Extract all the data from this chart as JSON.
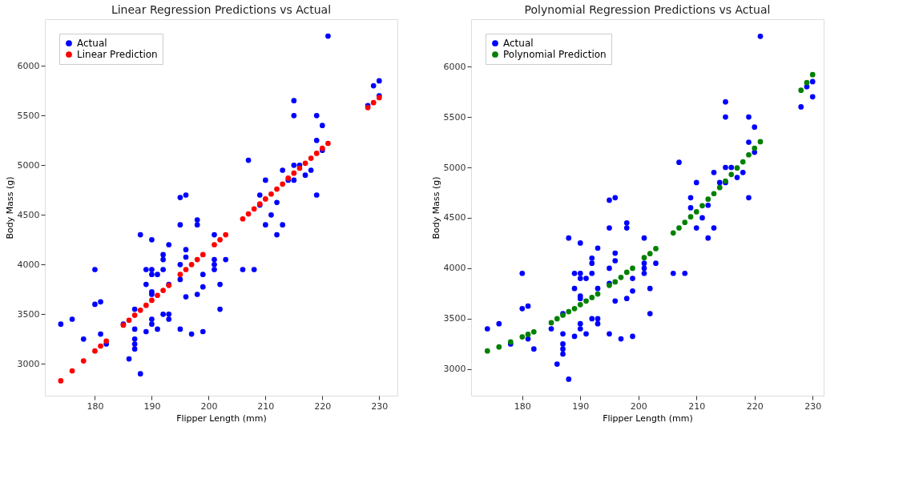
{
  "chart_data": [
    {
      "type": "scatter",
      "title": "Linear Regression Predictions vs Actual",
      "xlabel": "Flipper Length (mm)",
      "ylabel": "Body Mass (g)",
      "xlim": [
        171.2,
        233.2
      ],
      "ylim": [
        2680,
        6470
      ],
      "xticks": [
        180,
        190,
        200,
        210,
        220,
        230
      ],
      "yticks": [
        3000,
        3500,
        4000,
        4500,
        5000,
        5500,
        6000
      ],
      "legend": "top left",
      "marker": "circle",
      "grid": false,
      "series": [
        {
          "name": "Actual",
          "color": "#0000ff",
          "x": [
            174,
            176,
            178,
            180,
            180,
            181,
            181,
            182,
            185,
            186,
            187,
            187,
            187,
            187,
            187,
            188,
            188,
            189,
            189,
            189,
            190,
            190,
            190,
            190,
            190,
            190,
            190,
            191,
            191,
            192,
            192,
            192,
            192,
            193,
            193,
            193,
            193,
            195,
            195,
            195,
            195,
            195,
            196,
            196,
            196,
            196,
            197,
            198,
            198,
            198,
            199,
            199,
            199,
            201,
            201,
            201,
            201,
            202,
            202,
            203,
            206,
            207,
            208,
            209,
            209,
            210,
            210,
            211,
            212,
            212,
            213,
            213,
            214,
            215,
            215,
            215,
            215,
            216,
            217,
            218,
            219,
            219,
            219,
            220,
            220,
            221,
            228,
            229,
            230,
            230
          ],
          "values": [
            3400,
            3450,
            3250,
            3950,
            3600,
            3625,
            3300,
            3200,
            3400,
            3050,
            3550,
            3350,
            3250,
            3200,
            3150,
            4300,
            2900,
            3950,
            3800,
            3325,
            4250,
            3950,
            3900,
            3725,
            3700,
            3450,
            3400,
            3900,
            3350,
            4100,
            4050,
            3950,
            3500,
            4200,
            3800,
            3500,
            3450,
            4675,
            4400,
            4000,
            3850,
            3350,
            4700,
            4150,
            4075,
            3675,
            3300,
            4450,
            4400,
            3700,
            3900,
            3775,
            3325,
            4300,
            4050,
            4000,
            3950,
            3800,
            3550,
            4050,
            3950,
            5050,
            3950,
            4700,
            4600,
            4850,
            4400,
            4500,
            4625,
            4300,
            4950,
            4400,
            4850,
            5650,
            5500,
            5000,
            4850,
            5000,
            4900,
            4950,
            5500,
            5250,
            4700,
            5400,
            5150,
            6300,
            5600,
            5800,
            5850,
            5700
          ]
        },
        {
          "name": "Linear Prediction",
          "color": "#ff0000",
          "x": [
            174,
            176,
            178,
            180,
            181,
            182,
            185,
            186,
            187,
            188,
            189,
            190,
            191,
            192,
            193,
            195,
            196,
            197,
            198,
            199,
            201,
            202,
            203,
            206,
            207,
            208,
            209,
            210,
            211,
            212,
            213,
            214,
            215,
            216,
            217,
            218,
            219,
            220,
            221,
            228,
            229,
            230
          ],
          "values": [
            2830,
            2930,
            3030,
            3130,
            3180,
            3230,
            3390,
            3440,
            3490,
            3540,
            3590,
            3640,
            3690,
            3740,
            3790,
            3900,
            3950,
            4000,
            4050,
            4100,
            4200,
            4250,
            4300,
            4460,
            4510,
            4560,
            4610,
            4660,
            4710,
            4760,
            4810,
            4870,
            4920,
            4970,
            5020,
            5070,
            5120,
            5170,
            5220,
            5580,
            5630,
            5680
          ]
        }
      ]
    },
    {
      "type": "scatter",
      "title": "Polynomial Regression Predictions vs Actual",
      "xlabel": "Flipper Length (mm)",
      "ylabel": "Body Mass (g)",
      "xlim": [
        171.2,
        231.9
      ],
      "ylim": [
        2737,
        6469
      ],
      "xticks": [
        180,
        190,
        200,
        210,
        220,
        230
      ],
      "yticks": [
        3000,
        3500,
        4000,
        4500,
        5000,
        5500,
        6000
      ],
      "legend": "top left",
      "marker": "circle",
      "grid": false,
      "series": [
        {
          "name": "Actual",
          "color": "#0000ff",
          "x": [
            174,
            176,
            178,
            180,
            180,
            181,
            181,
            182,
            185,
            186,
            187,
            187,
            187,
            187,
            187,
            188,
            188,
            189,
            189,
            189,
            190,
            190,
            190,
            190,
            190,
            190,
            190,
            191,
            191,
            192,
            192,
            192,
            192,
            193,
            193,
            193,
            193,
            195,
            195,
            195,
            195,
            195,
            196,
            196,
            196,
            196,
            197,
            198,
            198,
            198,
            199,
            199,
            199,
            201,
            201,
            201,
            201,
            202,
            202,
            203,
            206,
            207,
            208,
            209,
            209,
            210,
            210,
            211,
            212,
            212,
            213,
            213,
            214,
            215,
            215,
            215,
            215,
            216,
            217,
            218,
            219,
            219,
            219,
            220,
            220,
            221,
            228,
            229,
            230,
            230
          ],
          "values": [
            3400,
            3450,
            3250,
            3950,
            3600,
            3625,
            3300,
            3200,
            3400,
            3050,
            3550,
            3350,
            3250,
            3200,
            3150,
            4300,
            2900,
            3950,
            3800,
            3325,
            4250,
            3950,
            3900,
            3725,
            3700,
            3450,
            3400,
            3900,
            3350,
            4100,
            4050,
            3950,
            3500,
            4200,
            3800,
            3500,
            3450,
            4675,
            4400,
            4000,
            3850,
            3350,
            4700,
            4150,
            4075,
            3675,
            3300,
            4450,
            4400,
            3700,
            3900,
            3775,
            3325,
            4300,
            4050,
            4000,
            3950,
            3800,
            3550,
            4050,
            3950,
            5050,
            3950,
            4700,
            4600,
            4850,
            4400,
            4500,
            4625,
            4300,
            4950,
            4400,
            4850,
            5650,
            5500,
            5000,
            4850,
            5000,
            4900,
            4950,
            5500,
            5250,
            4700,
            5400,
            5150,
            6300,
            5600,
            5800,
            5850,
            5700
          ]
        },
        {
          "name": "Polynomial Prediction",
          "color": "#008000",
          "x": [
            174,
            176,
            178,
            180,
            181,
            182,
            185,
            186,
            187,
            188,
            189,
            190,
            191,
            192,
            193,
            195,
            196,
            197,
            198,
            199,
            201,
            202,
            203,
            206,
            207,
            208,
            209,
            210,
            211,
            212,
            213,
            214,
            215,
            216,
            217,
            218,
            219,
            220,
            221,
            228,
            229,
            230
          ],
          "values": [
            3180,
            3220,
            3270,
            3320,
            3345,
            3370,
            3460,
            3500,
            3535,
            3570,
            3600,
            3640,
            3675,
            3710,
            3745,
            3830,
            3865,
            3910,
            3960,
            4000,
            4105,
            4145,
            4195,
            4350,
            4400,
            4455,
            4510,
            4560,
            4620,
            4685,
            4740,
            4800,
            4865,
            4930,
            4995,
            5055,
            5125,
            5190,
            5255,
            5765,
            5840,
            5920
          ]
        }
      ]
    }
  ]
}
